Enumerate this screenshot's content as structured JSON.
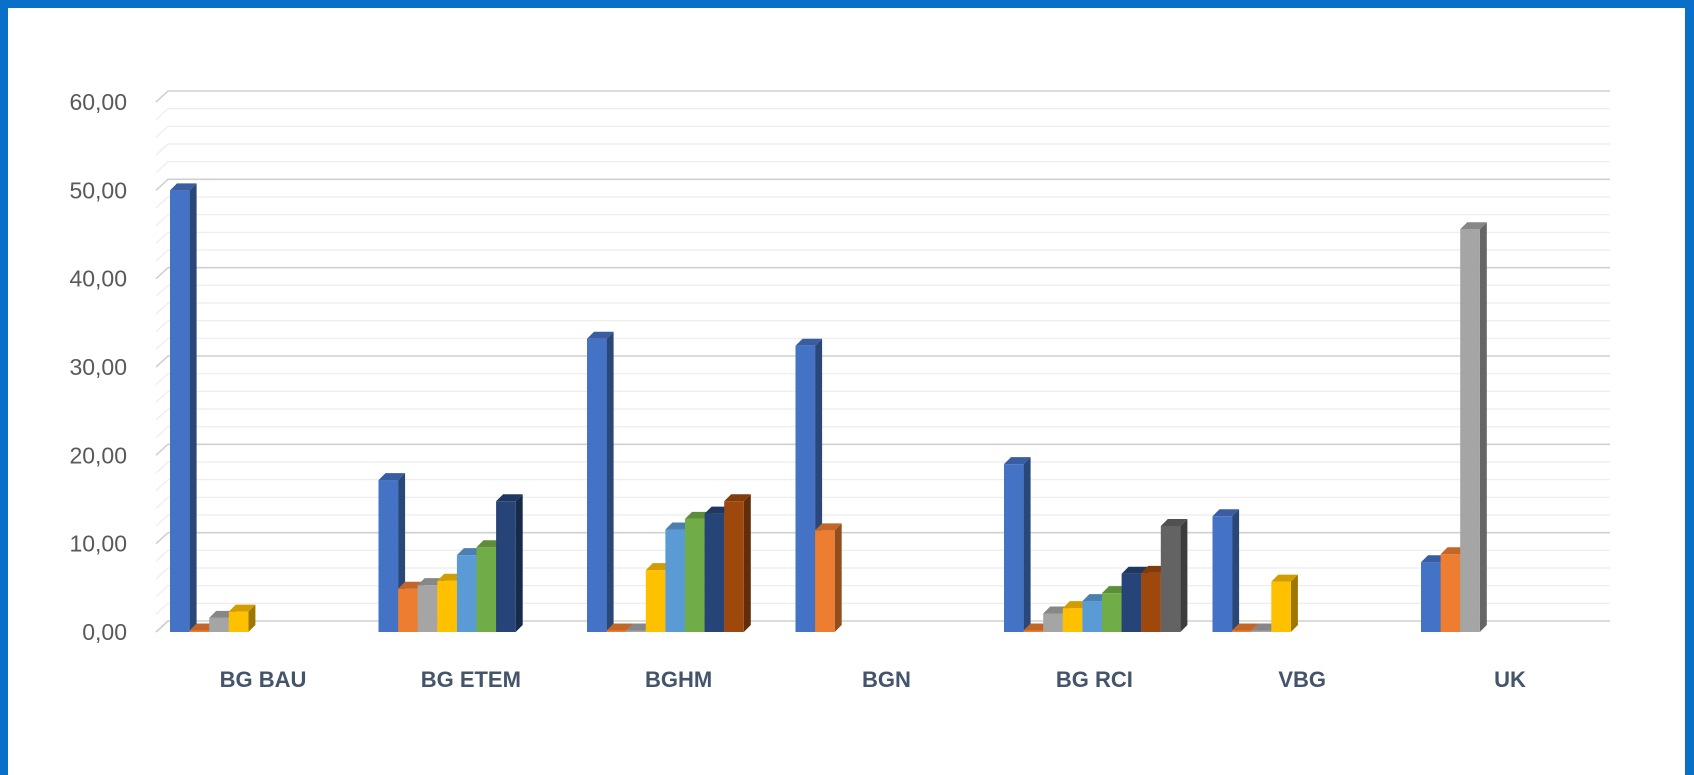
{
  "chart_data": {
    "type": "bar",
    "categories": [
      "BG BAU",
      "BG ETEM",
      "BGHM",
      "BGN",
      "BG RCI",
      "VBG",
      "UK"
    ],
    "ytick_labels": [
      "0,00",
      "10,00",
      "20,00",
      "30,00",
      "40,00",
      "50,00",
      "60,00"
    ],
    "ylim": [
      0,
      60
    ],
    "grid": true,
    "legend": "none",
    "title": "",
    "xlabel": "",
    "ylabel": "",
    "series_colors": [
      "#4472c4",
      "#ed7d31",
      "#a5a5a5",
      "#ffc000",
      "#5b9bd5",
      "#70ad47",
      "#264478",
      "#9e480e",
      "#636363"
    ],
    "series": [
      {
        "values": [
          50.0,
          17.2,
          33.2,
          32.4,
          19.0,
          13.1,
          7.9
        ]
      },
      {
        "values": [
          0.1,
          4.9,
          0.1,
          11.5,
          0.1,
          0.1,
          8.8
        ]
      },
      {
        "values": [
          1.6,
          5.3,
          0.1,
          null,
          2.1,
          0.1,
          45.6
        ]
      },
      {
        "values": [
          2.3,
          5.8,
          7.0,
          null,
          2.7,
          5.7,
          null
        ]
      },
      {
        "values": [
          null,
          8.7,
          11.6,
          null,
          3.5,
          null,
          null
        ]
      },
      {
        "values": [
          null,
          9.6,
          12.8,
          null,
          4.4,
          null,
          null
        ]
      },
      {
        "values": [
          null,
          14.8,
          13.4,
          null,
          6.6,
          null,
          null
        ]
      },
      {
        "values": [
          null,
          null,
          14.8,
          null,
          6.7,
          null,
          null
        ]
      },
      {
        "values": [
          null,
          null,
          null,
          null,
          12.0,
          null,
          null
        ]
      }
    ]
  }
}
